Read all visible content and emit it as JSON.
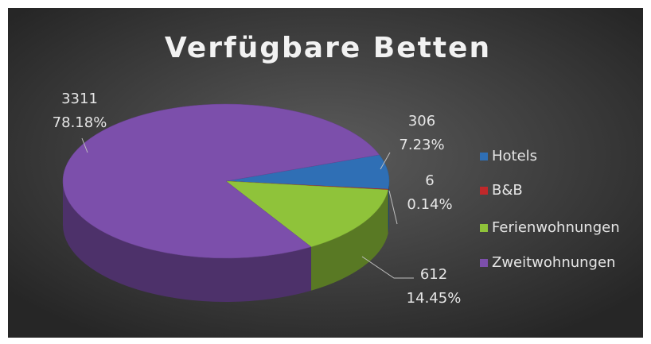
{
  "chart_data": {
    "type": "pie",
    "title": "Verfügbare Betten",
    "categories": [
      "Hotels",
      "B&B",
      "Ferienwohnungen",
      "Zweitwohnungen"
    ],
    "values": [
      306,
      6,
      612,
      3311
    ],
    "value_labels": [
      "7.23%",
      "0.14%",
      "14.45%",
      "78.18%"
    ],
    "colors": [
      "#2f6fb5",
      "#c0282a",
      "#8fc33a",
      "#7c4fab"
    ],
    "legend": "right",
    "three_d": true
  }
}
